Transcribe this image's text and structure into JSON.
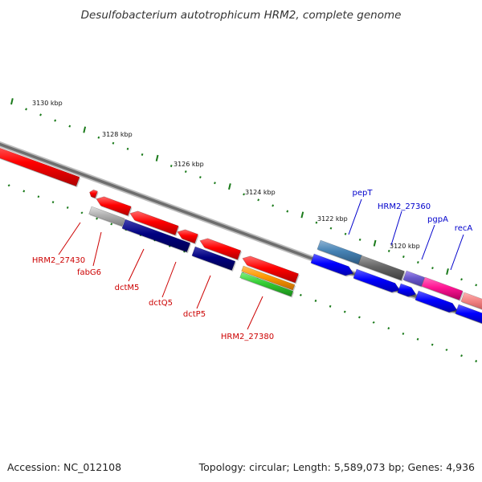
{
  "title": "Desulfobacterium autotrophicum HRM2, complete genome",
  "footer": {
    "accession": "Accession: NC_012108",
    "summary": "Topology: circular; Length: 5,589,073 bp; Genes: 4,936"
  },
  "colors": {
    "backbone": "#808080",
    "tick": "#1a7a1a",
    "label_reverse": "#cc0000",
    "label_forward": "#0000cc"
  },
  "kbp_labels": [
    "3130 kbp",
    "3128 kbp",
    "3126 kbp",
    "3124 kbp",
    "3122 kbp",
    "3120 kbp"
  ],
  "gene_labels": {
    "hrm2_27430": "HRM2_27430",
    "fabg6": "fabG6",
    "dctm5": "dctM5",
    "dctq5": "dctQ5",
    "dctp5": "dctP5",
    "hrm2_27380": "HRM2_27380",
    "pept": "pepT",
    "hrm2_27360": "HRM2_27360",
    "pgpa": "pgpA",
    "reca": "recA"
  }
}
